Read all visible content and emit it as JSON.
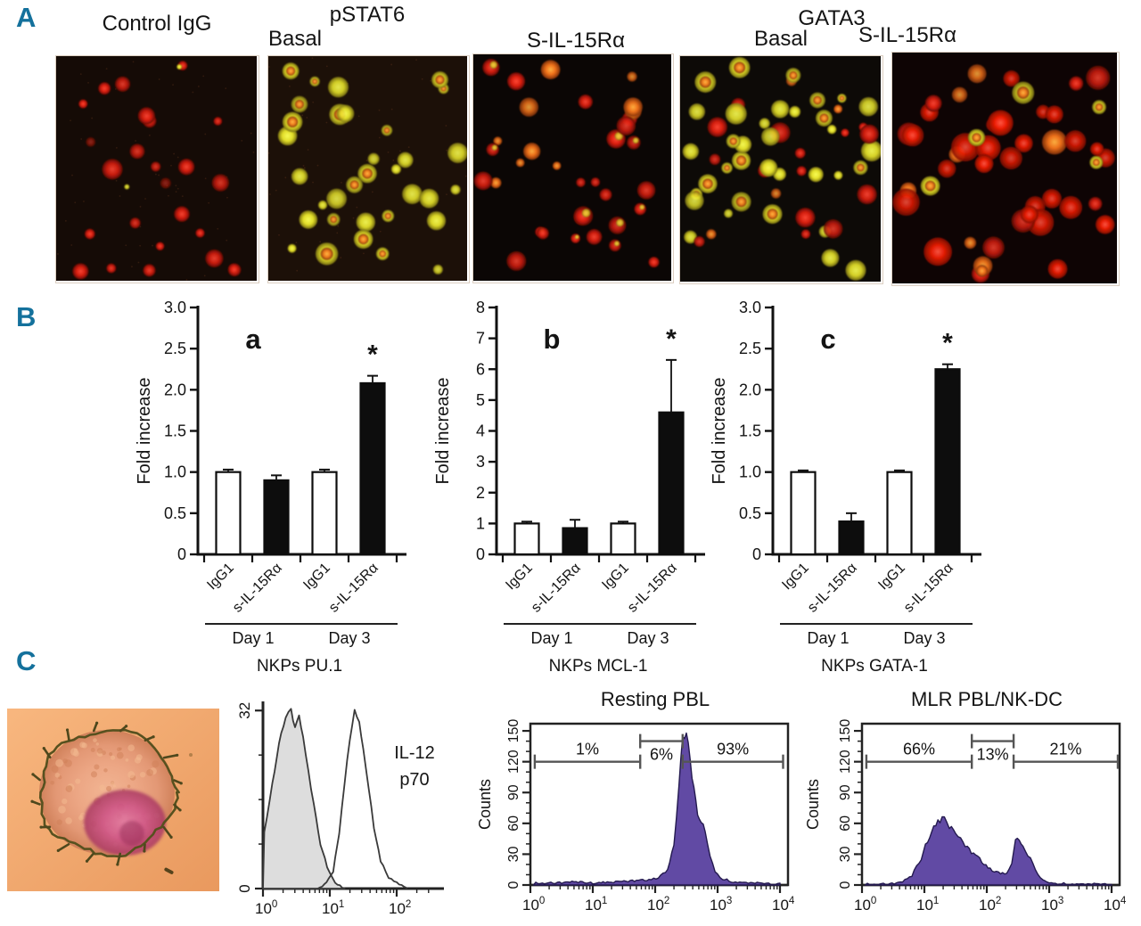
{
  "figure": {
    "panel_a": {
      "letter": "A",
      "col_labels": {
        "control": "Control IgG",
        "pstat6": "pSTAT6",
        "pstat6_basal": "Basal",
        "pstat6_sil": "S-IL-15Rα",
        "gata3": "GATA3",
        "gata3_basal": "Basal",
        "gata3_sil": "S-IL-15Rα"
      },
      "images": [
        "control-igg",
        "pstat6-basal",
        "pstat6-s-il-15ra",
        "gata3-basal",
        "gata3-s-il-15ra"
      ]
    },
    "panel_b": {
      "letter": "B"
    },
    "panel_c": {
      "letter": "C"
    }
  },
  "colors": {
    "panel_letter": "#14719c",
    "bar_black": "#0d0d0d",
    "bar_white": "#ffffff",
    "histogram_fill": "#5b43a0",
    "histogram_outline": "#241a4f",
    "isotype_fill": "#dcdcdc",
    "axis": "#111111",
    "gate_line": "#555555"
  },
  "chart_data": [
    {
      "id": "nkps-pu1",
      "type": "bar",
      "panel_letter": "a",
      "title": "NKPs PU.1",
      "ylabel": "Fold increase",
      "ylim": [
        0,
        3.0
      ],
      "yticks": [
        0,
        0.5,
        1.0,
        1.5,
        2.0,
        2.5,
        3.0
      ],
      "ytick_labels": [
        "0",
        "0.5",
        "1.0",
        "1.5",
        "2.0",
        "2.5",
        "3.0"
      ],
      "categories": [
        "IgG1",
        "s-IL-15Rα",
        "IgG1",
        "s-IL-15Rα"
      ],
      "values": [
        1.0,
        0.9,
        1.0,
        2.08
      ],
      "errors": [
        0.03,
        0.06,
        0.03,
        0.09
      ],
      "bar_fills": [
        "white",
        "black",
        "white",
        "black"
      ],
      "groups": [
        {
          "label": "Day 1",
          "bars": [
            0,
            1
          ]
        },
        {
          "label": "Day 3",
          "bars": [
            2,
            3
          ]
        }
      ],
      "significance": {
        "symbol": "*",
        "bar": 3
      }
    },
    {
      "id": "nkps-mcl1",
      "type": "bar",
      "panel_letter": "b",
      "title": "NKPs MCL-1",
      "ylabel": "Fold increase",
      "ylim": [
        0,
        8
      ],
      "yticks": [
        0,
        1,
        2,
        3,
        4,
        5,
        6,
        7,
        8
      ],
      "ytick_labels": [
        "0",
        "1",
        "2",
        "3",
        "4",
        "5",
        "6",
        "7",
        "8"
      ],
      "categories": [
        "IgG1",
        "s-IL-15Rα",
        "IgG1",
        "s-IL-15Rα"
      ],
      "values": [
        1.0,
        0.85,
        1.0,
        4.6
      ],
      "errors": [
        0.06,
        0.27,
        0.06,
        1.7
      ],
      "bar_fills": [
        "white",
        "black",
        "white",
        "black"
      ],
      "groups": [
        {
          "label": "Day 1",
          "bars": [
            0,
            1
          ]
        },
        {
          "label": "Day 3",
          "bars": [
            2,
            3
          ]
        }
      ],
      "significance": {
        "symbol": "*",
        "bar": 3
      }
    },
    {
      "id": "nkps-gata1",
      "type": "bar",
      "panel_letter": "c",
      "title": "NKPs GATA-1",
      "ylabel": "Fold increase",
      "ylim": [
        0,
        3.0
      ],
      "yticks": [
        0,
        0.5,
        1.0,
        1.5,
        2.0,
        2.5,
        3.0
      ],
      "ytick_labels": [
        "0",
        "0.5",
        "1.0",
        "1.5",
        "2.0",
        "2.5",
        "3.0"
      ],
      "categories": [
        "IgG1",
        "s-IL-15Rα",
        "IgG1",
        "s-IL-15Rα"
      ],
      "values": [
        1.0,
        0.4,
        1.0,
        2.25
      ],
      "errors": [
        0.02,
        0.1,
        0.02,
        0.06
      ],
      "bar_fills": [
        "white",
        "black",
        "white",
        "black"
      ],
      "groups": [
        {
          "label": "Day 1",
          "bars": [
            0,
            1
          ]
        },
        {
          "label": "Day 3",
          "bars": [
            2,
            3
          ]
        }
      ],
      "significance": {
        "symbol": "*",
        "bar": 3
      }
    },
    {
      "id": "il12-histogram",
      "type": "flow-histogram",
      "label_lines": [
        "IL-12",
        "p70"
      ],
      "xscale": "log10",
      "xtick_exponents": [
        0,
        1,
        2
      ],
      "ylim": [
        0,
        33
      ],
      "ytick_values": [
        0,
        32
      ],
      "ytick_labels": [
        "0",
        "32"
      ],
      "series": [
        {
          "name": "isotype-control",
          "filled": true,
          "points": [
            [
              0.0,
              0
            ],
            [
              0.02,
              10
            ],
            [
              0.06,
              13
            ],
            [
              0.14,
              19
            ],
            [
              0.24,
              26
            ],
            [
              0.34,
              31
            ],
            [
              0.42,
              32
            ],
            [
              0.48,
              29
            ],
            [
              0.54,
              31
            ],
            [
              0.6,
              27
            ],
            [
              0.68,
              21
            ],
            [
              0.76,
              15
            ],
            [
              0.86,
              8
            ],
            [
              0.96,
              4
            ],
            [
              1.08,
              1
            ],
            [
              1.22,
              0
            ]
          ]
        },
        {
          "name": "il-12-p70",
          "filled": false,
          "points": [
            [
              0.82,
              0
            ],
            [
              0.95,
              1
            ],
            [
              1.05,
              3
            ],
            [
              1.14,
              10
            ],
            [
              1.22,
              19
            ],
            [
              1.3,
              27
            ],
            [
              1.37,
              32
            ],
            [
              1.44,
              30
            ],
            [
              1.5,
              25
            ],
            [
              1.58,
              18
            ],
            [
              1.66,
              11
            ],
            [
              1.76,
              5
            ],
            [
              1.88,
              2
            ],
            [
              2.0,
              1
            ],
            [
              2.15,
              0
            ]
          ]
        }
      ]
    },
    {
      "id": "resting-pbl",
      "type": "flow-histogram",
      "title": "Resting PBL",
      "ylabel": "Counts",
      "xscale": "log10",
      "xtick_exponents": [
        0,
        1,
        2,
        3,
        4
      ],
      "ylim": [
        0,
        157
      ],
      "ytick_values": [
        0,
        30,
        60,
        90,
        120,
        150
      ],
      "ytick_labels": [
        "0",
        "30",
        "60",
        "90",
        "120",
        "150"
      ],
      "series": [
        {
          "name": "resting-pbl",
          "filled": true,
          "purple": true,
          "points": [
            [
              0.05,
              2
            ],
            [
              0.4,
              2
            ],
            [
              0.7,
              3
            ],
            [
              1.0,
              2
            ],
            [
              1.3,
              3
            ],
            [
              1.6,
              4
            ],
            [
              1.9,
              5
            ],
            [
              2.05,
              7
            ],
            [
              2.2,
              14
            ],
            [
              2.3,
              40
            ],
            [
              2.38,
              95
            ],
            [
              2.44,
              140
            ],
            [
              2.5,
              152
            ],
            [
              2.56,
              126
            ],
            [
              2.62,
              92
            ],
            [
              2.68,
              70
            ],
            [
              2.74,
              62
            ],
            [
              2.8,
              50
            ],
            [
              2.88,
              28
            ],
            [
              2.96,
              13
            ],
            [
              3.08,
              6
            ],
            [
              3.25,
              3
            ],
            [
              3.6,
              2
            ],
            [
              4.0,
              1
            ]
          ]
        }
      ],
      "gates": [
        {
          "label": "1%",
          "from": 0.07,
          "to": 1.76,
          "high": false
        },
        {
          "label": "6%",
          "from": 1.76,
          "to": 2.44,
          "high": true
        },
        {
          "label": "93%",
          "from": 2.44,
          "to": 4.05,
          "high": false
        }
      ]
    },
    {
      "id": "mlr-pbl-nk-dc",
      "type": "flow-histogram",
      "title": "MLR PBL/NK-DC",
      "ylabel": "Counts",
      "xscale": "log10",
      "xtick_exponents": [
        0,
        1,
        2,
        3,
        4
      ],
      "ylim": [
        0,
        157
      ],
      "ytick_values": [
        0,
        30,
        60,
        90,
        120,
        150
      ],
      "ytick_labels": [
        "0",
        "30",
        "60",
        "90",
        "120",
        "150"
      ],
      "series": [
        {
          "name": "mlr-pbl-nk-dc",
          "filled": true,
          "purple": true,
          "points": [
            [
              0.05,
              1
            ],
            [
              0.45,
              1
            ],
            [
              0.65,
              3
            ],
            [
              0.8,
              9
            ],
            [
              0.95,
              26
            ],
            [
              1.05,
              44
            ],
            [
              1.15,
              57
            ],
            [
              1.25,
              63
            ],
            [
              1.32,
              67
            ],
            [
              1.4,
              58
            ],
            [
              1.5,
              50
            ],
            [
              1.62,
              42
            ],
            [
              1.72,
              34
            ],
            [
              1.82,
              29
            ],
            [
              1.92,
              23
            ],
            [
              2.02,
              17
            ],
            [
              2.12,
              13
            ],
            [
              2.22,
              11
            ],
            [
              2.32,
              11
            ],
            [
              2.4,
              22
            ],
            [
              2.46,
              42
            ],
            [
              2.52,
              45
            ],
            [
              2.58,
              38
            ],
            [
              2.66,
              30
            ],
            [
              2.74,
              20
            ],
            [
              2.82,
              11
            ],
            [
              2.9,
              4
            ],
            [
              3.0,
              2
            ],
            [
              3.3,
              1
            ],
            [
              4.0,
              1
            ]
          ]
        }
      ],
      "gates": [
        {
          "label": "66%",
          "from": 0.07,
          "to": 1.76,
          "high": false
        },
        {
          "label": "13%",
          "from": 1.76,
          "to": 2.43,
          "high": true
        },
        {
          "label": "21%",
          "from": 2.43,
          "to": 4.1,
          "high": false
        }
      ]
    }
  ]
}
